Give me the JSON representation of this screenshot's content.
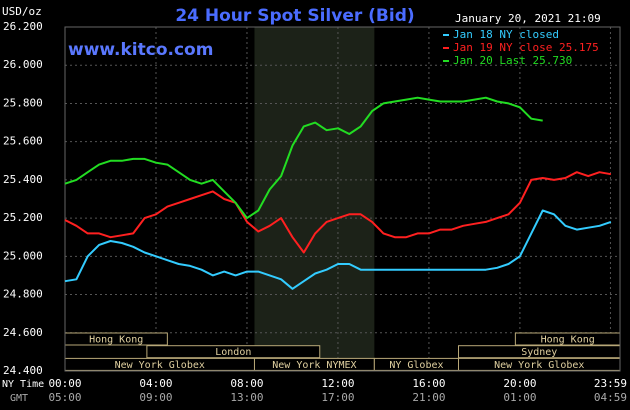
{
  "chart_data": {
    "type": "line",
    "title": "24 Hour Spot Silver (Bid)",
    "y_unit": "USD/oz",
    "timestamp": "January 20, 2021 21:09",
    "watermark": "www.kitco.com",
    "x_row_label": "NY Time",
    "x2_row_label": "GMT",
    "x": [
      0,
      0.5,
      1,
      1.5,
      2,
      2.5,
      3,
      3.5,
      4,
      4.5,
      5,
      5.5,
      6,
      6.5,
      7,
      7.5,
      8,
      8.5,
      9,
      9.5,
      10,
      10.5,
      11,
      11.5,
      12,
      12.5,
      13,
      13.5,
      14,
      14.5,
      15,
      15.5,
      16,
      16.5,
      17,
      17.5,
      18,
      18.5,
      19,
      19.5,
      20,
      20.5,
      21,
      21.5,
      22,
      22.5,
      23,
      23.5,
      24
    ],
    "xlim": [
      0,
      24.4
    ],
    "xticks": [
      {
        "value": 0,
        "label": "00:00"
      },
      {
        "value": 4,
        "label": "04:00"
      },
      {
        "value": 8,
        "label": "08:00"
      },
      {
        "value": 12,
        "label": "12:00"
      },
      {
        "value": 16,
        "label": "16:00"
      },
      {
        "value": 20,
        "label": "20:00"
      },
      {
        "value": 23.98,
        "label": "23:59"
      }
    ],
    "x2_labels": [
      "05:00",
      "09:00",
      "13:00",
      "17:00",
      "21:00",
      "01:00",
      "04:59"
    ],
    "ylim": [
      24.4,
      26.2
    ],
    "yticks": [
      {
        "value": 24.4,
        "label": "24.400"
      },
      {
        "value": 24.6,
        "label": "24.600"
      },
      {
        "value": 24.8,
        "label": "24.800"
      },
      {
        "value": 25.0,
        "label": "25.000"
      },
      {
        "value": 25.2,
        "label": "25.200"
      },
      {
        "value": 25.4,
        "label": "25.400"
      },
      {
        "value": 25.6,
        "label": "25.600"
      },
      {
        "value": 25.8,
        "label": "25.800"
      },
      {
        "value": 26.0,
        "label": "26.000"
      },
      {
        "value": 26.2,
        "label": "26.200"
      }
    ],
    "grid": true,
    "highlight_x": [
      8.33,
      13.6
    ],
    "series": [
      {
        "name": "Jan 18 NY closed",
        "color": "#33ccff",
        "values": [
          24.87,
          24.88,
          25.0,
          25.06,
          25.08,
          25.07,
          25.05,
          25.02,
          25.0,
          24.98,
          24.96,
          24.95,
          24.93,
          24.9,
          24.92,
          24.9,
          24.92,
          24.92,
          24.9,
          24.88,
          24.83,
          24.87,
          24.91,
          24.93,
          24.96,
          24.96,
          24.93,
          24.93,
          24.93,
          24.93,
          24.93,
          24.93,
          24.93,
          24.93,
          24.93,
          24.93,
          24.93,
          24.93,
          24.94,
          24.96,
          25.0,
          25.12,
          25.24,
          25.22,
          25.16,
          25.14,
          25.15,
          25.16,
          25.18
        ]
      },
      {
        "name": "Jan 19 NY close 25.175",
        "color": "#ff2020",
        "values": [
          25.19,
          25.16,
          25.12,
          25.12,
          25.1,
          25.11,
          25.12,
          25.2,
          25.22,
          25.26,
          25.28,
          25.3,
          25.32,
          25.34,
          25.3,
          25.28,
          25.18,
          25.13,
          25.16,
          25.2,
          25.1,
          25.02,
          25.12,
          25.18,
          25.2,
          25.22,
          25.22,
          25.18,
          25.12,
          25.1,
          25.1,
          25.12,
          25.12,
          25.14,
          25.14,
          25.16,
          25.17,
          25.18,
          25.2,
          25.22,
          25.28,
          25.4,
          25.41,
          25.4,
          25.41,
          25.44,
          25.42,
          25.44,
          25.43
        ]
      },
      {
        "name": "Jan 20 Last 25.730",
        "color": "#22dd22",
        "values": [
          25.38,
          25.4,
          25.44,
          25.48,
          25.5,
          25.5,
          25.51,
          25.51,
          25.49,
          25.48,
          25.44,
          25.4,
          25.38,
          25.4,
          25.34,
          25.28,
          25.2,
          25.24,
          25.35,
          25.42,
          25.58,
          25.68,
          25.7,
          25.66,
          25.67,
          25.64,
          25.68,
          25.76,
          25.8,
          25.81,
          25.82,
          25.83,
          25.82,
          25.81,
          25.81,
          25.81,
          25.82,
          25.83,
          25.81,
          25.8,
          25.78,
          25.72,
          25.71,
          null,
          null,
          null,
          null,
          null,
          null
        ]
      }
    ],
    "sessions": [
      {
        "name": "Hong Kong",
        "start": 0,
        "end": 4.5,
        "row": 0
      },
      {
        "name": "Hong Kong",
        "start": 19.8,
        "end": 24.4,
        "row": 0
      },
      {
        "name": "London",
        "start": 3.6,
        "end": 11.2,
        "row": 1
      },
      {
        "name": "Sydney",
        "start": 17.3,
        "end": 24.4,
        "row": 1
      },
      {
        "name": "New York Globex",
        "start": 0,
        "end": 8.33,
        "row": 2
      },
      {
        "name": "New York NYMEX",
        "start": 8.33,
        "end": 13.6,
        "row": 2
      },
      {
        "name": "NY Globex",
        "start": 13.6,
        "end": 17.3,
        "row": 2
      },
      {
        "name": "New York Globex",
        "start": 17.3,
        "end": 24.4,
        "row": 2
      }
    ]
  }
}
